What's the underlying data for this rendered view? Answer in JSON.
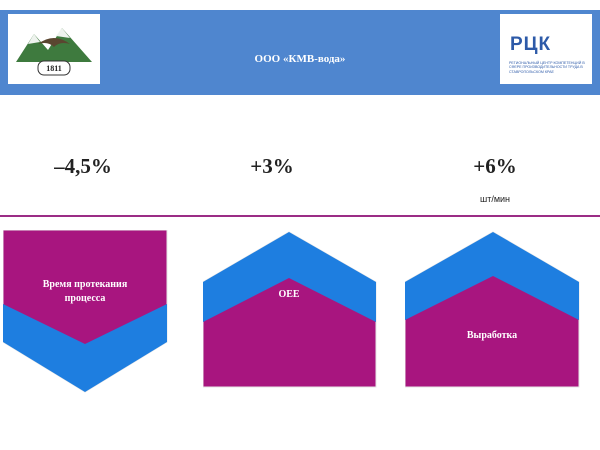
{
  "header": {
    "company": "ООО «КМВ-вода»",
    "left_logo": {
      "icon": "mountain-eagle-logo-icon",
      "year": "1811"
    },
    "right_logo": {
      "icon": "rck-logo-icon",
      "wordmark": "РЦК",
      "subtitle": "РЕГИОНАЛЬНЫЙ ЦЕНТР КОМПЕТЕНЦИЙ В СФЕРЕ ПРОИЗВОДИТЕЛЬНОСТИ ТРУДА В СТАВРОПОЛЬСКОМ КРАЕ"
    }
  },
  "metrics": [
    {
      "value": "–4,5%",
      "unit": ""
    },
    {
      "value": "+3%",
      "unit": ""
    },
    {
      "value": "+6%",
      "unit": "шт/мин"
    }
  ],
  "cards": [
    {
      "label_line1": "Время протекания",
      "label_line2": "процесса"
    },
    {
      "label_line1": "OEE",
      "label_line2": ""
    },
    {
      "label_line1": "Выработка",
      "label_line2": ""
    }
  ],
  "colors": {
    "header": "#4f86cf",
    "magenta": "#a8157f",
    "blue": "#1e7ee0",
    "divider": "#9b2d86"
  }
}
